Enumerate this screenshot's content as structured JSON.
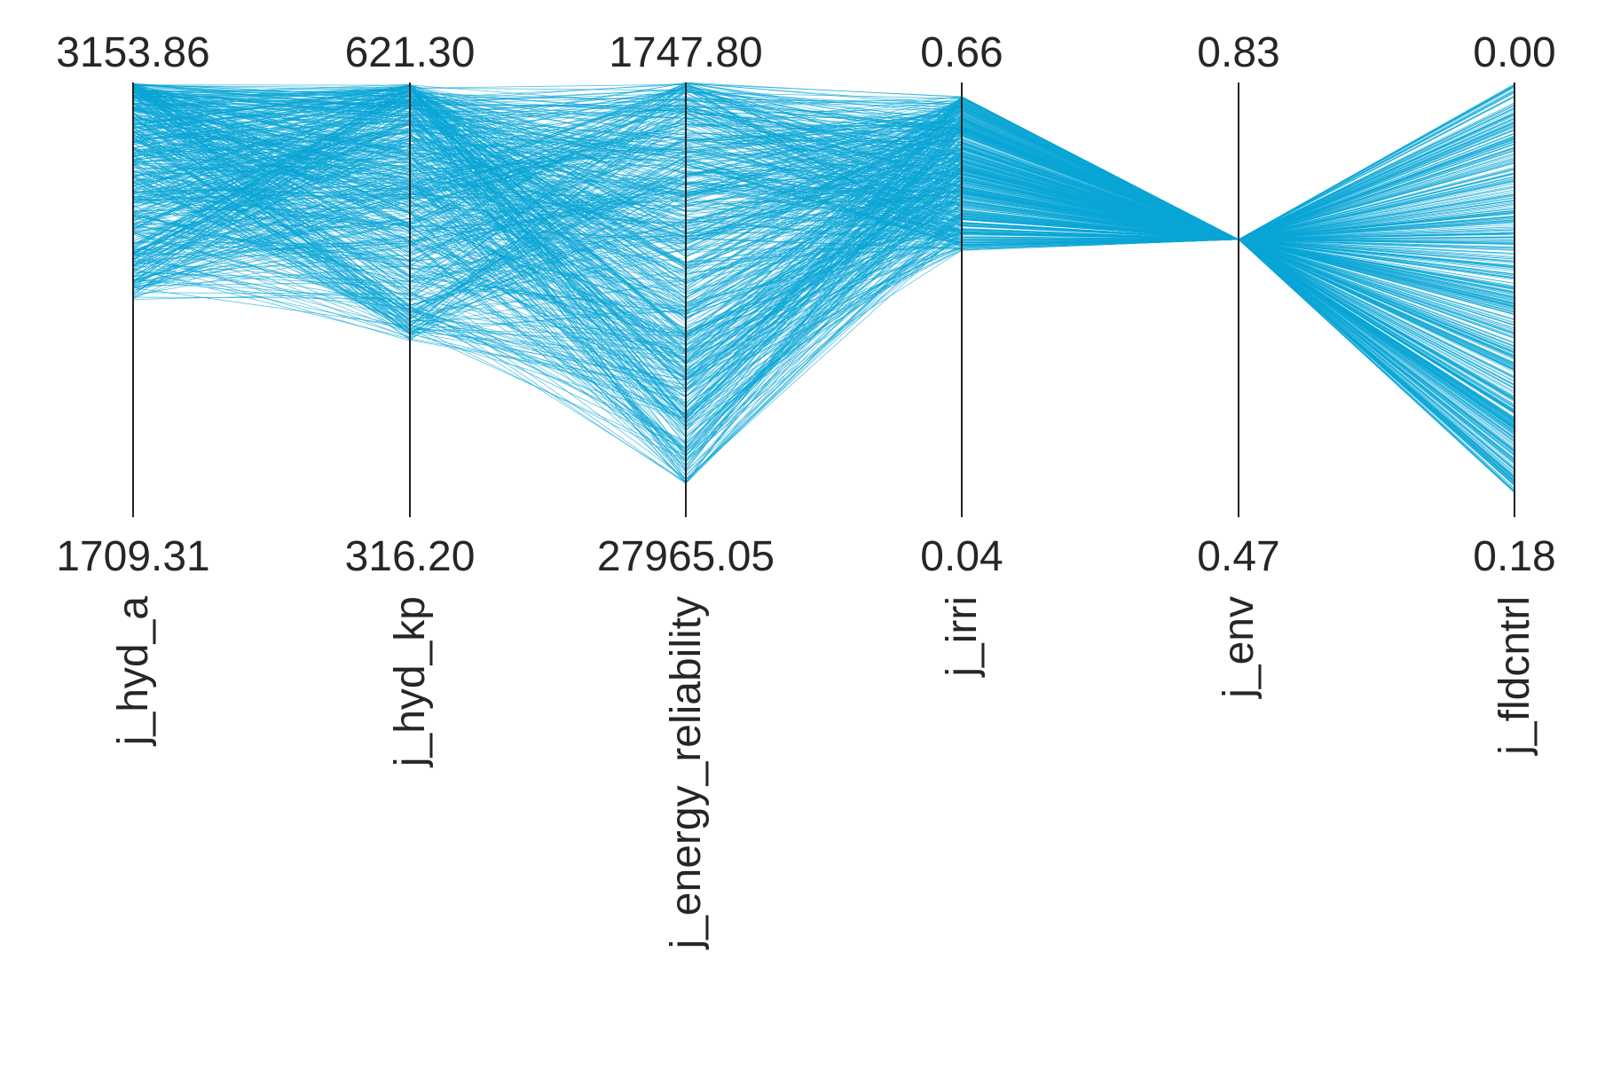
{
  "chart_data": {
    "type": "parallel-coordinates",
    "line_color": "#0aa5d5",
    "axis_color": "#222222",
    "axes": [
      {
        "name": "j_hyd_a",
        "top": "3153.86",
        "bottom": "1709.31",
        "range": [
          1709.31,
          3153.86
        ]
      },
      {
        "name": "j_hyd_kp",
        "top": "621.30",
        "bottom": "316.20",
        "range": [
          316.2,
          621.3
        ]
      },
      {
        "name": "j_energy_reliability",
        "top": "1747.80",
        "bottom": "27965.05",
        "range": [
          27965.05,
          1747.8
        ]
      },
      {
        "name": "j_irri",
        "top": "0.66",
        "bottom": "0.04",
        "range": [
          0.04,
          0.66
        ]
      },
      {
        "name": "j_env",
        "top": "0.83",
        "bottom": "0.47",
        "range": [
          0.47,
          0.83
        ]
      },
      {
        "name": "j_fldcntrl",
        "top": "0.00",
        "bottom": "0.18",
        "range": [
          0.18,
          0.0
        ]
      }
    ],
    "solutions": {
      "count": 600,
      "j_hyd_a_range": [
        2430,
        3150
      ],
      "j_hyd_kp_range": [
        440,
        620
      ],
      "j_energy_reliability_range": [
        1750,
        26000
      ],
      "j_irri_range": [
        0.42,
        0.64
      ],
      "j_env_value": 0.7,
      "j_fldcntrl_range": [
        0.0,
        0.17
      ]
    }
  }
}
